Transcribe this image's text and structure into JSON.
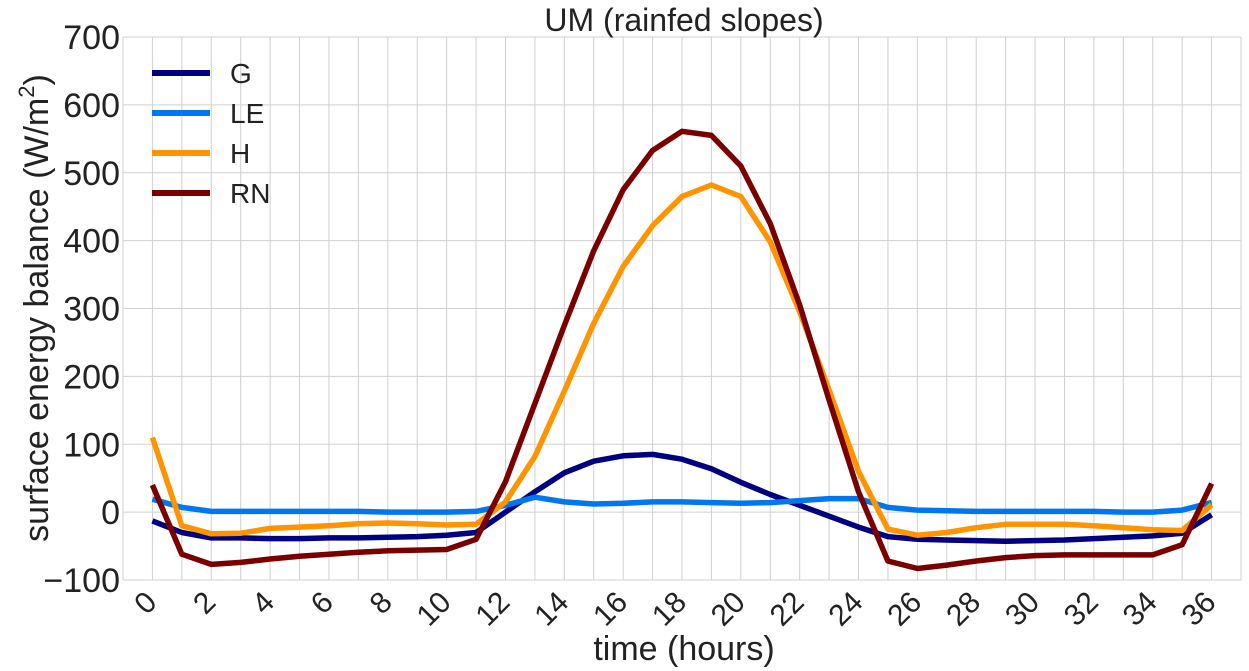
{
  "chart_data": {
    "type": "line",
    "title": "UM (rainfed slopes)",
    "xlabel": "time (hours)",
    "ylabel_main": "surface energy balance (W/m",
    "ylabel_sup": "2",
    "ylabel_close": ")",
    "xlim": [
      -1,
      37
    ],
    "ylim": [
      -100,
      700
    ],
    "xticks": [
      0,
      2,
      4,
      6,
      8,
      10,
      12,
      14,
      16,
      18,
      20,
      22,
      24,
      26,
      28,
      30,
      32,
      34,
      36
    ],
    "xtick_labels": [
      "0",
      "2",
      "4",
      "6",
      "8",
      "10",
      "12",
      "14",
      "16",
      "18",
      "20",
      "22",
      "24",
      "26",
      "28",
      "30",
      "32",
      "34",
      "36"
    ],
    "yticks": [
      -100,
      0,
      100,
      200,
      300,
      400,
      500,
      600,
      700
    ],
    "ytick_labels": [
      "−100",
      "0",
      "100",
      "200",
      "300",
      "400",
      "500",
      "600",
      "700"
    ],
    "grid": true,
    "legend_position": "top-left",
    "x": [
      0,
      1,
      2,
      3,
      4,
      5,
      6,
      7,
      8,
      9,
      10,
      11,
      12,
      13,
      14,
      15,
      16,
      17,
      18,
      19,
      20,
      21,
      22,
      23,
      24,
      25,
      26,
      27,
      28,
      29,
      30,
      31,
      32,
      33,
      34,
      35,
      36
    ],
    "series": [
      {
        "name": "G",
        "color": "#000080",
        "values": [
          -13,
          -30,
          -38,
          -38,
          -39,
          -39,
          -38,
          -38,
          -37,
          -36,
          -34,
          -30,
          0,
          30,
          58,
          75,
          83,
          85,
          78,
          64,
          44,
          26,
          10,
          -6,
          -22,
          -36,
          -40,
          -41,
          -42,
          -43,
          -42,
          -41,
          -39,
          -37,
          -35,
          -31,
          -4
        ]
      },
      {
        "name": "LE",
        "color": "#0077ee",
        "values": [
          19,
          7,
          1,
          1,
          1,
          1,
          1,
          1,
          0,
          0,
          0,
          1,
          10,
          22,
          15,
          12,
          13,
          15,
          15,
          14,
          13,
          14,
          17,
          20,
          20,
          7,
          3,
          2,
          1,
          1,
          1,
          1,
          1,
          0,
          0,
          3,
          14
        ]
      },
      {
        "name": "H",
        "color": "#ff9400",
        "values": [
          110,
          -20,
          -32,
          -31,
          -24,
          -22,
          -20,
          -17,
          -16,
          -17,
          -19,
          -18,
          15,
          82,
          178,
          278,
          362,
          422,
          465,
          482,
          465,
          398,
          295,
          180,
          60,
          -25,
          -34,
          -30,
          -23,
          -18,
          -18,
          -18,
          -20,
          -23,
          -26,
          -27,
          11
        ]
      },
      {
        "name": "RN",
        "color": "#7a0000",
        "values": [
          40,
          -62,
          -77,
          -74,
          -69,
          -65,
          -62,
          -59,
          -57,
          -56,
          -55,
          -40,
          45,
          160,
          275,
          385,
          475,
          533,
          561,
          555,
          510,
          425,
          305,
          165,
          30,
          -72,
          -83,
          -78,
          -72,
          -67,
          -64,
          -63,
          -63,
          -63,
          -63,
          -48,
          42
        ]
      }
    ]
  }
}
